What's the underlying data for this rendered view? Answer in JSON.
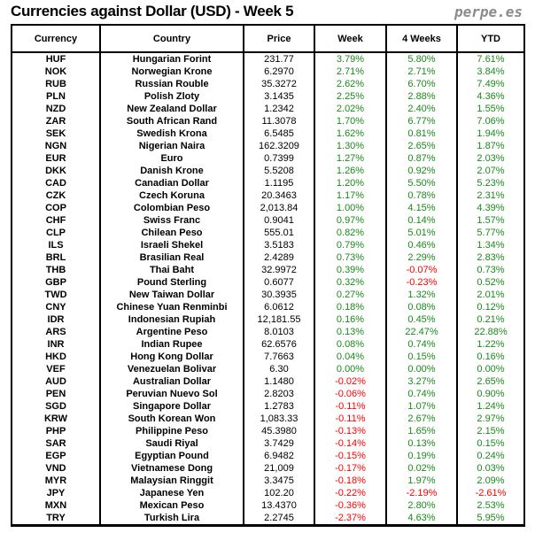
{
  "title": "Currencies against Dollar (USD) - Week 5",
  "brand": "perpe.es",
  "colors": {
    "positive": "#1a8a1a",
    "negative": "#ff0000"
  },
  "columns": [
    "Currency",
    "Country",
    "Price",
    "Week",
    "4 Weeks",
    "YTD"
  ],
  "rows": [
    {
      "code": "HUF",
      "country": "Hungarian Forint",
      "price": "231.77",
      "week": "3.79%",
      "weeks4": "5.80%",
      "ytd": "7.61%"
    },
    {
      "code": "NOK",
      "country": "Norwegian Krone",
      "price": "6.2970",
      "week": "2.71%",
      "weeks4": "2.71%",
      "ytd": "3.84%"
    },
    {
      "code": "RUB",
      "country": "Russian Rouble",
      "price": "35.3272",
      "week": "2.62%",
      "weeks4": "6.70%",
      "ytd": "7.49%"
    },
    {
      "code": "PLN",
      "country": "Polish Zloty",
      "price": "3.1435",
      "week": "2.25%",
      "weeks4": "2.88%",
      "ytd": "4.36%"
    },
    {
      "code": "NZD",
      "country": "New Zealand Dollar",
      "price": "1.2342",
      "week": "2.02%",
      "weeks4": "2.40%",
      "ytd": "1.55%"
    },
    {
      "code": "ZAR",
      "country": "South African Rand",
      "price": "11.3078",
      "week": "1.70%",
      "weeks4": "6.77%",
      "ytd": "7.06%"
    },
    {
      "code": "SEK",
      "country": "Swedish Krona",
      "price": "6.5485",
      "week": "1.62%",
      "weeks4": "0.81%",
      "ytd": "1.94%"
    },
    {
      "code": "NGN",
      "country": "Nigerian Naira",
      "price": "162.3209",
      "week": "1.30%",
      "weeks4": "2.65%",
      "ytd": "1.87%"
    },
    {
      "code": "EUR",
      "country": "Euro",
      "price": "0.7399",
      "week": "1.27%",
      "weeks4": "0.87%",
      "ytd": "2.03%"
    },
    {
      "code": "DKK",
      "country": "Danish Krone",
      "price": "5.5208",
      "week": "1.26%",
      "weeks4": "0.92%",
      "ytd": "2.07%"
    },
    {
      "code": "CAD",
      "country": "Canadian Dollar",
      "price": "1.1195",
      "week": "1.20%",
      "weeks4": "5.50%",
      "ytd": "5.23%"
    },
    {
      "code": "CZK",
      "country": "Czech Koruna",
      "price": "20.3463",
      "week": "1.17%",
      "weeks4": "0.78%",
      "ytd": "2.31%"
    },
    {
      "code": "COP",
      "country": "Colombian Peso",
      "price": "2,013.84",
      "week": "1.00%",
      "weeks4": "4.15%",
      "ytd": "4.39%"
    },
    {
      "code": "CHF",
      "country": "Swiss Franc",
      "price": "0.9041",
      "week": "0.97%",
      "weeks4": "0.14%",
      "ytd": "1.57%"
    },
    {
      "code": "CLP",
      "country": "Chilean Peso",
      "price": "555.01",
      "week": "0.82%",
      "weeks4": "5.01%",
      "ytd": "5.77%"
    },
    {
      "code": "ILS",
      "country": "Israeli Shekel",
      "price": "3.5183",
      "week": "0.79%",
      "weeks4": "0.46%",
      "ytd": "1.34%"
    },
    {
      "code": "BRL",
      "country": "Brasilian Real",
      "price": "2.4289",
      "week": "0.73%",
      "weeks4": "2.29%",
      "ytd": "2.83%"
    },
    {
      "code": "THB",
      "country": "Thai Baht",
      "price": "32.9972",
      "week": "0.39%",
      "weeks4": "-0.07%",
      "ytd": "0.73%"
    },
    {
      "code": "GBP",
      "country": "Pound Sterling",
      "price": "0.6077",
      "week": "0.32%",
      "weeks4": "-0.23%",
      "ytd": "0.52%"
    },
    {
      "code": "TWD",
      "country": "New Taiwan Dollar",
      "price": "30.3935",
      "week": "0.27%",
      "weeks4": "1.32%",
      "ytd": "2.01%"
    },
    {
      "code": "CNY",
      "country": "Chinese Yuan Renminbi",
      "price": "6.0612",
      "week": "0.18%",
      "weeks4": "0.08%",
      "ytd": "0.12%"
    },
    {
      "code": "IDR",
      "country": "Indonesian Rupiah",
      "price": "12,181.55",
      "week": "0.16%",
      "weeks4": "0.45%",
      "ytd": "0.21%"
    },
    {
      "code": "ARS",
      "country": "Argentine Peso",
      "price": "8.0103",
      "week": "0.13%",
      "weeks4": "22.47%",
      "ytd": "22.88%"
    },
    {
      "code": "INR",
      "country": "Indian Rupee",
      "price": "62.6576",
      "week": "0.08%",
      "weeks4": "0.74%",
      "ytd": "1.22%"
    },
    {
      "code": "HKD",
      "country": "Hong Kong Dollar",
      "price": "7.7663",
      "week": "0.04%",
      "weeks4": "0.15%",
      "ytd": "0.16%"
    },
    {
      "code": "VEF",
      "country": "Venezuelan Bolivar",
      "price": "6.30",
      "week": "0.00%",
      "weeks4": "0.00%",
      "ytd": "0.00%"
    },
    {
      "code": "AUD",
      "country": "Australian Dollar",
      "price": "1.1480",
      "week": "-0.02%",
      "weeks4": "3.27%",
      "ytd": "2.65%"
    },
    {
      "code": "PEN",
      "country": "Peruvian Nuevo Sol",
      "price": "2.8203",
      "week": "-0.06%",
      "weeks4": "0.74%",
      "ytd": "0.90%"
    },
    {
      "code": "SGD",
      "country": "Singapore Dollar",
      "price": "1.2783",
      "week": "-0.11%",
      "weeks4": "1.07%",
      "ytd": "1.24%"
    },
    {
      "code": "KRW",
      "country": "South Korean Won",
      "price": "1,083.33",
      "week": "-0.11%",
      "weeks4": "2.67%",
      "ytd": "2.97%"
    },
    {
      "code": "PHP",
      "country": "Philippine Peso",
      "price": "45.3980",
      "week": "-0.13%",
      "weeks4": "1.65%",
      "ytd": "2.15%"
    },
    {
      "code": "SAR",
      "country": "Saudi Riyal",
      "price": "3.7429",
      "week": "-0.14%",
      "weeks4": "0.13%",
      "ytd": "0.15%"
    },
    {
      "code": "EGP",
      "country": "Egyptian Pound",
      "price": "6.9482",
      "week": "-0.15%",
      "weeks4": "0.19%",
      "ytd": "0.24%"
    },
    {
      "code": "VND",
      "country": "Vietnamese Dong",
      "price": "21,009",
      "week": "-0.17%",
      "weeks4": "0.02%",
      "ytd": "0.03%"
    },
    {
      "code": "MYR",
      "country": "Malaysian Ringgit",
      "price": "3.3475",
      "week": "-0.18%",
      "weeks4": "1.97%",
      "ytd": "2.09%"
    },
    {
      "code": "JPY",
      "country": "Japanese Yen",
      "price": "102.20",
      "week": "-0.22%",
      "weeks4": "-2.19%",
      "ytd": "-2.61%"
    },
    {
      "code": "MXN",
      "country": "Mexican Peso",
      "price": "13.4370",
      "week": "-0.36%",
      "weeks4": "2.80%",
      "ytd": "2.53%"
    },
    {
      "code": "TRY",
      "country": "Turkish Lira",
      "price": "2.2745",
      "week": "-2.37%",
      "weeks4": "4.63%",
      "ytd": "5.95%"
    }
  ]
}
